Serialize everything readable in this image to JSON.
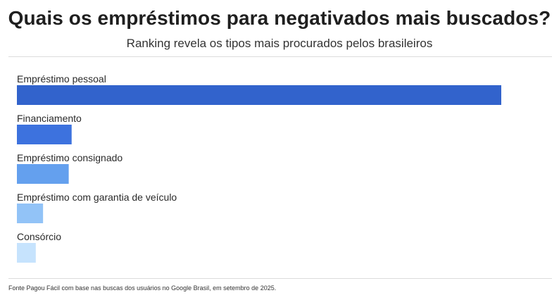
{
  "header": {
    "title": "Quais os empréstimos para negativados mais buscados?",
    "subtitle": "Ranking revela os tipos mais procurados pelos brasileiros"
  },
  "footer": {
    "source": "Fonte Pagou Fácil com base nas buscas dos usuários no Google Brasil, em setembro de 2025."
  },
  "chart_data": {
    "type": "bar",
    "orientation": "horizontal",
    "categories": [
      "Empréstimo pessoal",
      "Financiamento",
      "Empréstimo consignado",
      "Empréstimo com garantia de veículo",
      "Consórcio"
    ],
    "values": [
      100,
      11.3,
      10.7,
      5.4,
      3.9
    ],
    "colors": [
      "#3263cc",
      "#3d72de",
      "#64a0ee",
      "#92c3f7",
      "#c6e3fd"
    ],
    "xlim": [
      0,
      100
    ],
    "grid": false,
    "legend": "none",
    "title": "Quais os empréstimos para negativados mais buscados?",
    "subtitle": "Ranking revela os tipos mais procurados pelos brasileiros"
  }
}
